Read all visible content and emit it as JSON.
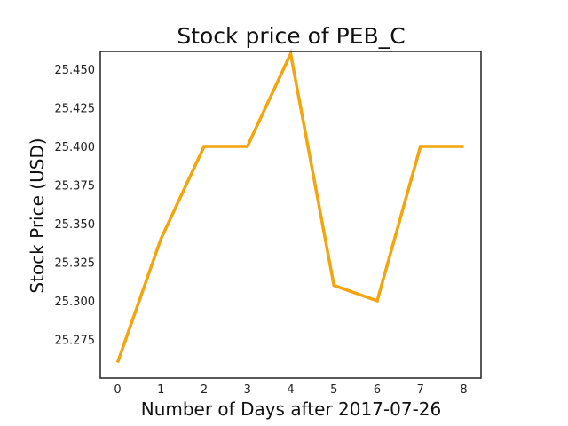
{
  "chart_data": {
    "type": "line",
    "title": "Stock price of PEB_C",
    "xlabel": "Number of Days after 2017-07-26",
    "ylabel": "Stock Price (USD)",
    "x": [
      0,
      1,
      2,
      3,
      4,
      5,
      6,
      7,
      8
    ],
    "series": [
      {
        "values": [
          25.26,
          25.34,
          25.4,
          25.4,
          25.46,
          25.31,
          25.3,
          25.4,
          25.4
        ]
      }
    ],
    "xlim": [
      -0.4,
      8.4
    ],
    "ylim": [
      25.25,
      25.4615
    ],
    "xticks": [
      "0",
      "1",
      "2",
      "3",
      "4",
      "5",
      "6",
      "7",
      "8"
    ],
    "yticks": [
      "25.275",
      "25.300",
      "25.325",
      "25.350",
      "25.375",
      "25.400",
      "25.425",
      "25.450"
    ],
    "grid": false,
    "legend": "none",
    "line_color": "#f4a40c"
  }
}
